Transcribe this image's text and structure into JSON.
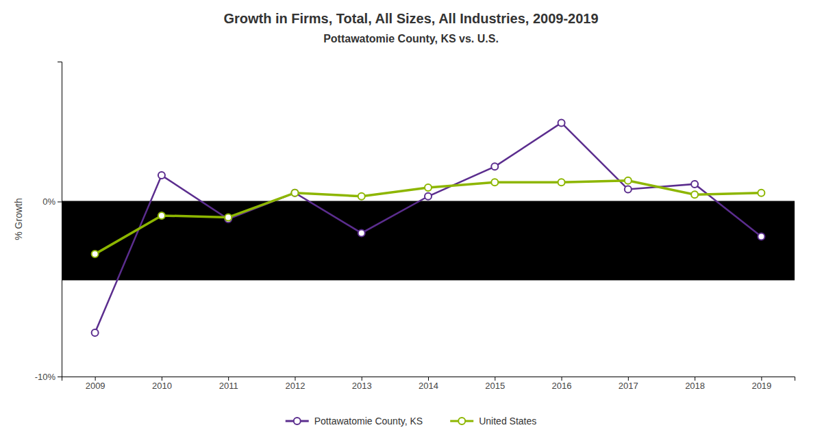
{
  "chart_data": {
    "type": "line",
    "title": "Growth in Firms, Total, All Sizes, All Industries, 2009-2019",
    "subtitle": "Pottawatomie County, KS vs. U.S.",
    "ylabel": "% Growth",
    "x": [
      2009,
      2010,
      2011,
      2012,
      2013,
      2014,
      2015,
      2016,
      2017,
      2018,
      2019
    ],
    "series": [
      {
        "name": "Pottawatomie County, KS",
        "color": "#5b2d8e",
        "marker": "circle",
        "line_style": "solid",
        "values": [
          -7.5,
          1.5,
          -1.0,
          0.5,
          -1.8,
          0.3,
          2.0,
          4.5,
          0.7,
          1.0,
          -2.0
        ]
      },
      {
        "name": "United States",
        "color": "#8db600",
        "marker": "circle",
        "line_style": "solid",
        "values": [
          -3.0,
          -0.8,
          -0.9,
          0.5,
          0.3,
          0.8,
          1.1,
          1.1,
          1.2,
          0.4,
          0.5
        ]
      }
    ],
    "xlim": [
      2008.5,
      2019.5
    ],
    "xticks": [
      2009,
      2010,
      2011,
      2012,
      2013,
      2014,
      2015,
      2016,
      2017,
      2018,
      2019
    ],
    "ylim": [
      -10,
      8
    ],
    "yticks": [
      {
        "value": -10,
        "label": "-10%"
      },
      {
        "value": 0,
        "label": "0%"
      }
    ],
    "band": {
      "from": -4.5,
      "to": 0.0,
      "color": "#000000"
    },
    "grid": false,
    "legend": "bottom"
  }
}
